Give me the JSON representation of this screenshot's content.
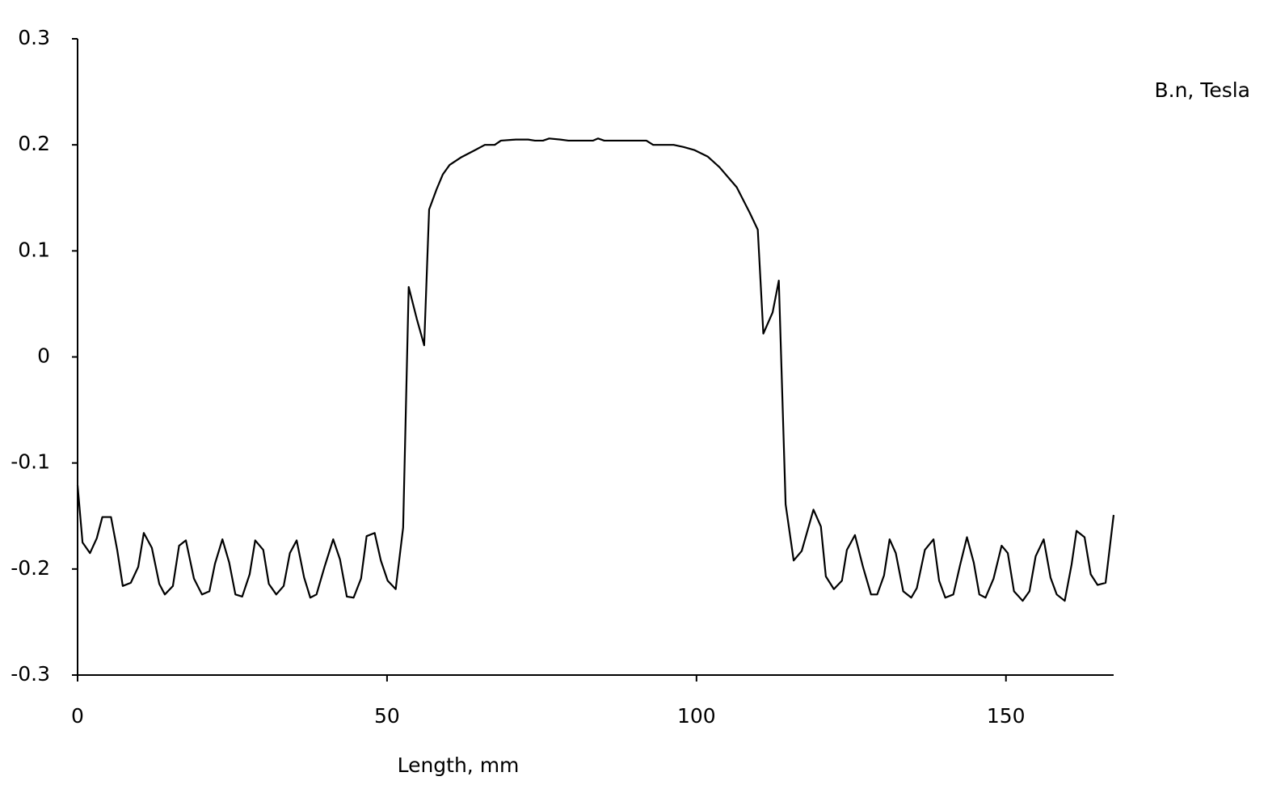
{
  "chart_data": {
    "type": "line",
    "x_label": "Length, mm",
    "xlim": [
      0,
      167.4
    ],
    "xticks": [
      0,
      50,
      100,
      150
    ],
    "ylim": [
      -0.3,
      0.3
    ],
    "yticks": [
      0.3,
      0.2,
      0.1,
      0,
      -0.1,
      -0.2,
      -0.3
    ],
    "grid": false,
    "legend_position": "top-right",
    "x": [
      0,
      0.8,
      2.0,
      3.1,
      4.0,
      5.4,
      6.4,
      7.3,
      8.6,
      9.8,
      10.7,
      12.0,
      13.2,
      14.1,
      15.4,
      16.4,
      17.5,
      18.8,
      20.1,
      21.3,
      22.2,
      23.4,
      24.5,
      25.5,
      26.6,
      27.8,
      28.7,
      30.0,
      30.9,
      32.1,
      33.3,
      34.3,
      35.4,
      36.6,
      37.6,
      38.6,
      39.9,
      41.3,
      42.4,
      43.5,
      44.6,
      45.8,
      46.7,
      48.0,
      49.0,
      50.1,
      51.4,
      52.6,
      53.5,
      54.8,
      56.0,
      56.8,
      58.0,
      59.0,
      60.1,
      61.9,
      64.2,
      65.8,
      67.4,
      68.4,
      70.8,
      72.8,
      73.9,
      75.2,
      76.2,
      78.0,
      79.3,
      81.7,
      83.3,
      84.1,
      85.1,
      88.0,
      91.9,
      93.0,
      96.3,
      97.9,
      99.7,
      101.8,
      103.7,
      106.5,
      108.6,
      109.9,
      110.8,
      112.3,
      113.3,
      114.4,
      115.7,
      117.0,
      118.9,
      120.1,
      120.9,
      122.2,
      123.5,
      124.3,
      125.6,
      126.9,
      128.2,
      129.2,
      130.3,
      131.2,
      132.2,
      133.4,
      134.7,
      135.6,
      136.9,
      138.3,
      139.2,
      140.2,
      141.5,
      142.6,
      143.7,
      144.8,
      145.7,
      146.7,
      148.0,
      149.3,
      150.3,
      151.3,
      152.7,
      153.8,
      154.8,
      156.1,
      157.2,
      158.2,
      159.5,
      160.6,
      161.4,
      162.7,
      163.7,
      164.8,
      166.1,
      167.4
    ],
    "series": [
      {
        "name": "B.n, Tesla",
        "color": "#000000",
        "values": [
          -0.121,
          -0.175,
          -0.185,
          -0.171,
          -0.151,
          -0.151,
          -0.182,
          -0.216,
          -0.213,
          -0.198,
          -0.166,
          -0.18,
          -0.214,
          -0.224,
          -0.216,
          -0.178,
          -0.173,
          -0.209,
          -0.224,
          -0.221,
          -0.195,
          -0.172,
          -0.194,
          -0.224,
          -0.226,
          -0.205,
          -0.173,
          -0.182,
          -0.214,
          -0.224,
          -0.216,
          -0.185,
          -0.173,
          -0.208,
          -0.227,
          -0.224,
          -0.198,
          -0.172,
          -0.191,
          -0.226,
          -0.227,
          -0.209,
          -0.169,
          -0.166,
          -0.192,
          -0.211,
          -0.219,
          -0.161,
          0.066,
          0.036,
          0.011,
          0.139,
          0.158,
          0.172,
          0.181,
          0.188,
          0.195,
          0.2,
          0.2,
          0.204,
          0.205,
          0.205,
          0.204,
          0.204,
          0.206,
          0.205,
          0.204,
          0.204,
          0.204,
          0.206,
          0.204,
          0.204,
          0.204,
          0.2,
          0.2,
          0.198,
          0.195,
          0.189,
          0.179,
          0.16,
          0.136,
          0.12,
          0.022,
          0.042,
          0.072,
          -0.139,
          -0.192,
          -0.183,
          -0.144,
          -0.16,
          -0.207,
          -0.219,
          -0.211,
          -0.182,
          -0.168,
          -0.198,
          -0.224,
          -0.224,
          -0.206,
          -0.172,
          -0.185,
          -0.221,
          -0.227,
          -0.218,
          -0.182,
          -0.172,
          -0.211,
          -0.227,
          -0.224,
          -0.196,
          -0.17,
          -0.194,
          -0.224,
          -0.227,
          -0.209,
          -0.178,
          -0.185,
          -0.221,
          -0.23,
          -0.221,
          -0.188,
          -0.172,
          -0.208,
          -0.224,
          -0.23,
          -0.196,
          -0.164,
          -0.17,
          -0.205,
          -0.215,
          -0.213,
          -0.149
        ]
      }
    ]
  }
}
